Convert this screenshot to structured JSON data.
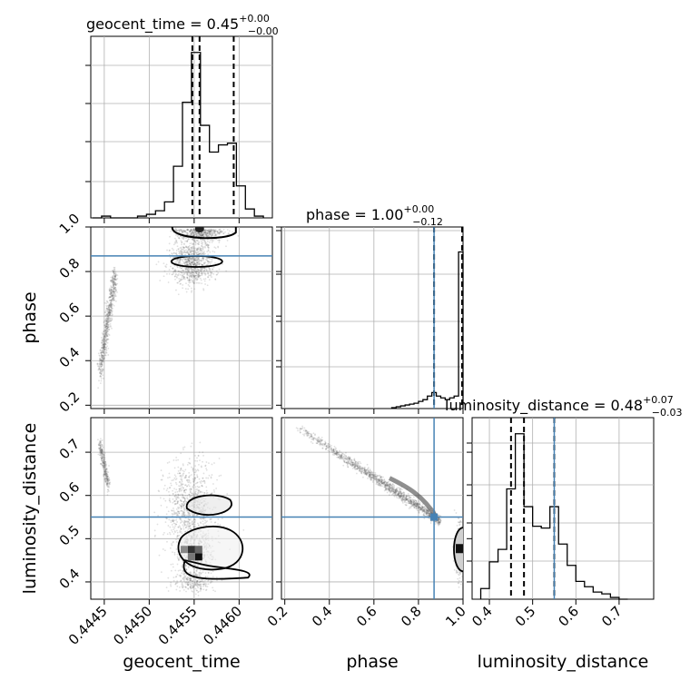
{
  "chart_data": {
    "type": "corner",
    "parameters": [
      "geocent_time",
      "phase",
      "luminosity_distance"
    ],
    "titles": [
      {
        "text": "geocent_time = 0.45",
        "sup": "+0.00",
        "sub": "−0.00"
      },
      {
        "text": "phase = 1.00",
        "sup": "+0.00",
        "sub": "−0.12"
      },
      {
        "text": "luminosity_distance = 0.48",
        "sup": "+0.07",
        "sub": "−0.03"
      }
    ],
    "xlabels": [
      "geocent_time",
      "phase",
      "luminosity_distance"
    ],
    "ylabels": [
      "",
      "phase",
      "luminosity_distance"
    ],
    "ranges": {
      "geocent_time": [
        0.44435,
        0.44637
      ],
      "phase": [
        0.185,
        1.0
      ],
      "luminosity_distance": [
        0.36,
        0.78
      ]
    },
    "ticks": {
      "geocent_time": [
        "0.4445",
        "0.4450",
        "0.4455",
        "0.4460"
      ],
      "phase_x": [
        "0.2",
        "0.4",
        "0.6",
        "0.8",
        "1.0"
      ],
      "phase_y": [
        "0.2",
        "0.4",
        "0.6",
        "0.8",
        "1.0"
      ],
      "luminosity_distance": [
        "0.4",
        "0.5",
        "0.6",
        "0.7"
      ]
    },
    "truths": {
      "geocent_time": null,
      "phase": 0.87,
      "luminosity_distance": 0.55
    },
    "quantiles": {
      "geocent_time": [
        0.44548,
        0.44556,
        0.44594
      ],
      "phase": [
        0.87,
        1.0,
        1.0
      ],
      "luminosity_distance": [
        0.45,
        0.48,
        0.55
      ]
    },
    "histograms": {
      "geocent_time": {
        "edges": [
          0.44437,
          0.44447,
          0.44457,
          0.44467,
          0.44477,
          0.44487,
          0.44497,
          0.44507,
          0.44517,
          0.44527,
          0.44537,
          0.44547,
          0.44557,
          0.44567,
          0.44577,
          0.44587,
          0.44597,
          0.44607,
          0.44617,
          0.44627
        ],
        "counts": [
          0,
          0.01,
          0,
          0,
          0,
          0.01,
          0.02,
          0.04,
          0.09,
          0.29,
          0.65,
          0.93,
          0.52,
          0.37,
          0.41,
          0.42,
          0.18,
          0.05,
          0.01
        ]
      },
      "phase": {
        "edges": [
          0.68,
          0.7,
          0.72,
          0.74,
          0.76,
          0.78,
          0.8,
          0.82,
          0.84,
          0.86,
          0.88,
          0.9,
          0.92,
          0.94,
          0.96,
          0.98,
          1.0
        ],
        "counts": [
          0.005,
          0.01,
          0.015,
          0.02,
          0.025,
          0.03,
          0.04,
          0.05,
          0.07,
          0.09,
          0.07,
          0.06,
          0.05,
          0.06,
          0.07,
          0.88
        ]
      },
      "luminosity_distance": {
        "edges": [
          0.38,
          0.4,
          0.42,
          0.44,
          0.46,
          0.48,
          0.5,
          0.52,
          0.54,
          0.56,
          0.58,
          0.6,
          0.62,
          0.64,
          0.66,
          0.68,
          0.7,
          0.72
        ],
        "counts": [
          0.06,
          0.21,
          0.28,
          0.62,
          0.93,
          0.52,
          0.41,
          0.4,
          0.52,
          0.31,
          0.19,
          0.1,
          0.07,
          0.04,
          0.03,
          0.01,
          0
        ]
      }
    },
    "scatter_shape": {
      "geocent_time_phase": [
        [
          0.44446,
          0.37
        ],
        [
          0.44452,
          0.5
        ],
        [
          0.44455,
          0.62
        ],
        [
          0.44458,
          0.7
        ],
        [
          0.4446,
          0.76
        ]
      ],
      "geocent_time_luminosity_distance": [
        [
          0.44446,
          0.71
        ],
        [
          0.44452,
          0.62
        ],
        [
          0.44455,
          0.6
        ],
        [
          0.44458,
          0.63
        ],
        [
          0.4446,
          0.61
        ]
      ],
      "phase_luminosity_distance": [
        [
          0.27,
          0.75
        ],
        [
          0.45,
          0.69
        ],
        [
          0.6,
          0.66
        ],
        [
          0.75,
          0.61
        ],
        [
          0.85,
          0.57
        ],
        [
          0.87,
          0.55
        ]
      ]
    },
    "grid": true,
    "colors": {
      "truth": "#4682b4",
      "hist": "#000000",
      "points": "#555555",
      "grid": "#b0b0b0",
      "density": "#222222"
    }
  }
}
